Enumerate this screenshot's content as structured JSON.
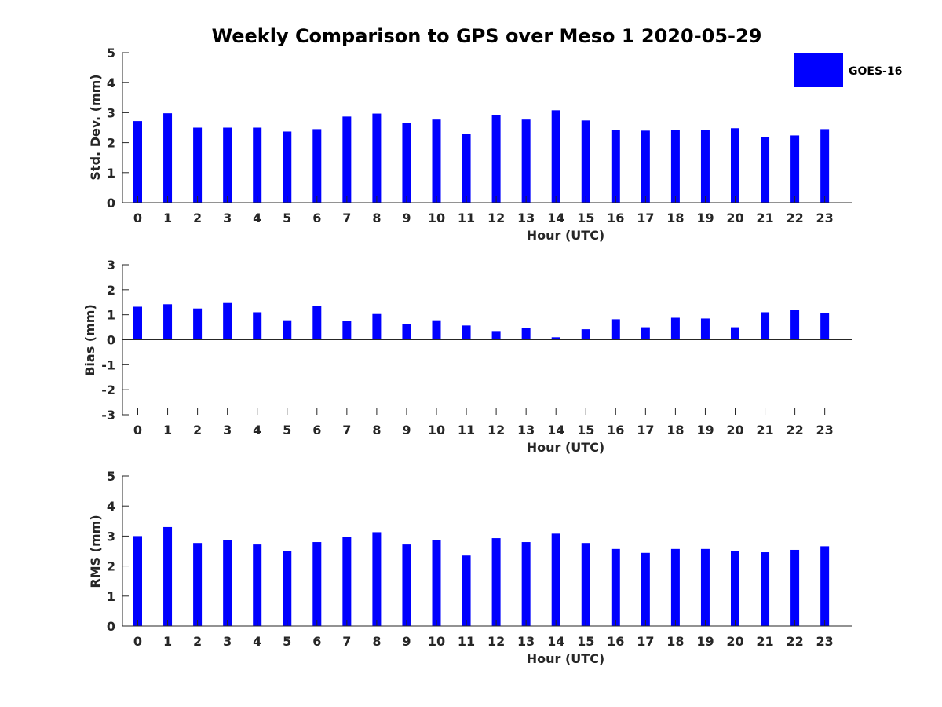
{
  "chart_data": [
    {
      "type": "bar",
      "title": "Weekly Comparison to GPS over Meso 1 2020-05-29",
      "xlabel": "Hour (UTC)",
      "ylabel": "Std. Dev. (mm)",
      "ylim": [
        0,
        5
      ],
      "yticks": [
        0,
        1,
        2,
        3,
        4,
        5
      ],
      "categories": [
        "0",
        "1",
        "2",
        "3",
        "4",
        "5",
        "6",
        "7",
        "8",
        "9",
        "10",
        "11",
        "12",
        "13",
        "14",
        "15",
        "16",
        "17",
        "18",
        "19",
        "20",
        "21",
        "22",
        "23"
      ],
      "series": [
        {
          "name": "GOES-16",
          "color": "#0000ff",
          "values": [
            2.72,
            2.98,
            2.5,
            2.5,
            2.5,
            2.37,
            2.45,
            2.87,
            2.97,
            2.66,
            2.77,
            2.29,
            2.92,
            2.77,
            3.08,
            2.74,
            2.43,
            2.4,
            2.43,
            2.43,
            2.48,
            2.19,
            2.24,
            2.45
          ]
        }
      ],
      "legend": {
        "position": "top-right",
        "entries": [
          "GOES-16"
        ]
      }
    },
    {
      "type": "bar",
      "xlabel": "Hour (UTC)",
      "ylabel": "Bias (mm)",
      "ylim": [
        -3,
        3
      ],
      "yticks": [
        -3,
        -2,
        -1,
        0,
        1,
        2,
        3
      ],
      "categories": [
        "0",
        "1",
        "2",
        "3",
        "4",
        "5",
        "6",
        "7",
        "8",
        "9",
        "10",
        "11",
        "12",
        "13",
        "14",
        "15",
        "16",
        "17",
        "18",
        "19",
        "20",
        "21",
        "22",
        "23"
      ],
      "series": [
        {
          "name": "GOES-16",
          "color": "#0000ff",
          "values": [
            1.32,
            1.42,
            1.25,
            1.47,
            1.1,
            0.78,
            1.35,
            0.75,
            1.03,
            0.63,
            0.78,
            0.57,
            0.35,
            0.48,
            0.1,
            0.42,
            0.82,
            0.5,
            0.88,
            0.85,
            0.5,
            1.1,
            1.2,
            1.07
          ]
        }
      ]
    },
    {
      "type": "bar",
      "xlabel": "Hour (UTC)",
      "ylabel": "RMS (mm)",
      "ylim": [
        0,
        5
      ],
      "yticks": [
        0,
        1,
        2,
        3,
        4,
        5
      ],
      "categories": [
        "0",
        "1",
        "2",
        "3",
        "4",
        "5",
        "6",
        "7",
        "8",
        "9",
        "10",
        "11",
        "12",
        "13",
        "14",
        "15",
        "16",
        "17",
        "18",
        "19",
        "20",
        "21",
        "22",
        "23"
      ],
      "series": [
        {
          "name": "GOES-16",
          "color": "#0000ff",
          "values": [
            3.0,
            3.3,
            2.77,
            2.87,
            2.72,
            2.49,
            2.8,
            2.98,
            3.13,
            2.72,
            2.87,
            2.35,
            2.93,
            2.8,
            3.08,
            2.77,
            2.57,
            2.44,
            2.57,
            2.57,
            2.51,
            2.46,
            2.54,
            2.66
          ]
        }
      ]
    }
  ]
}
